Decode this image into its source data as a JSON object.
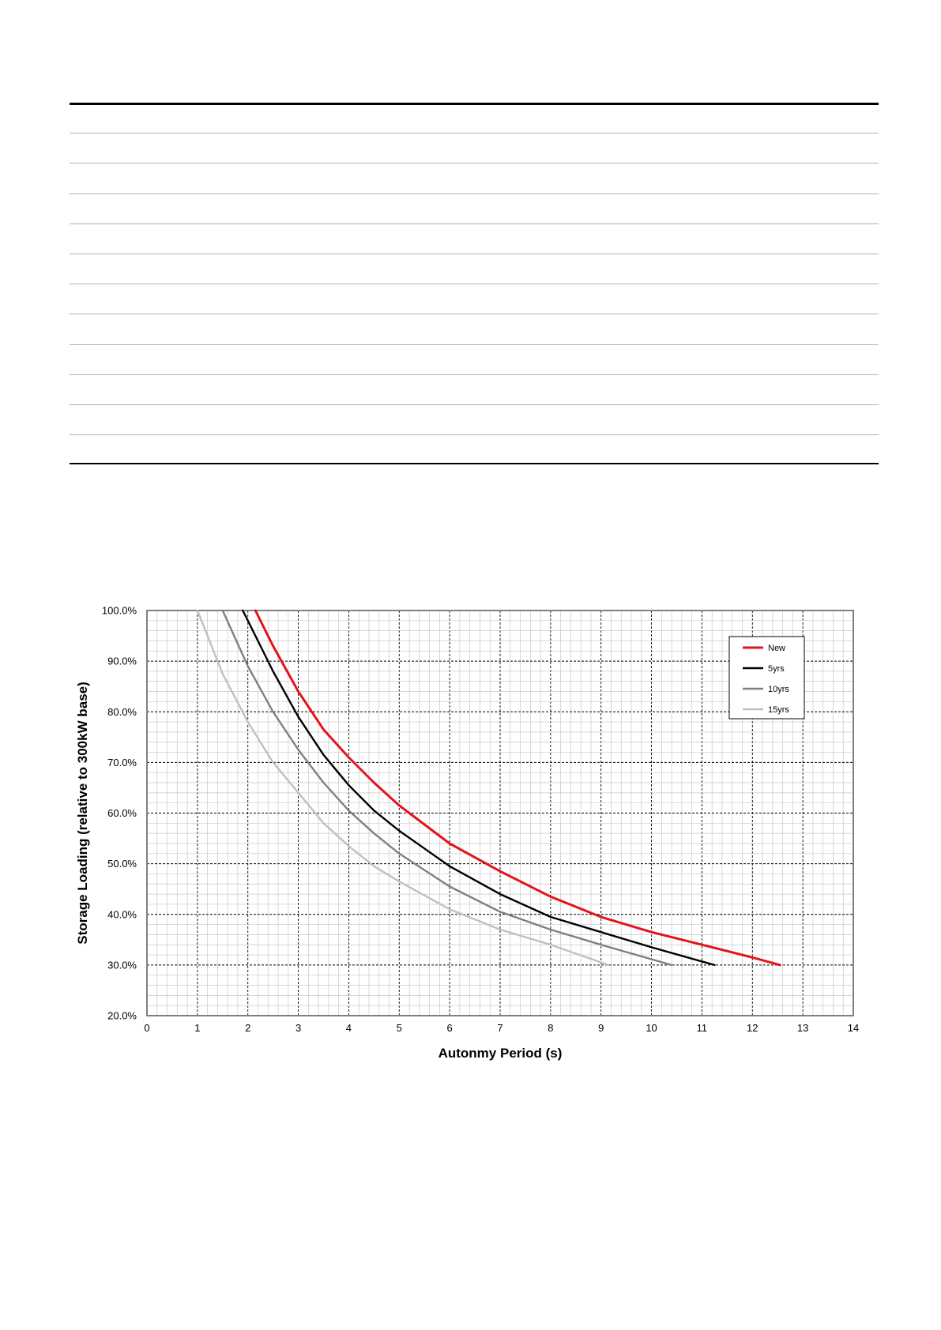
{
  "table": {
    "row_count": 12
  },
  "chart_data": {
    "type": "line",
    "title": "",
    "xlabel": "Autonmy Period (s)",
    "ylabel": "Storage Loading (relative to 300kW base)",
    "xlim": [
      0,
      14
    ],
    "ylim": [
      20,
      100
    ],
    "xticks": [
      "0",
      "1",
      "2",
      "3",
      "4",
      "5",
      "6",
      "7",
      "8",
      "9",
      "10",
      "11",
      "12",
      "13",
      "14"
    ],
    "yticks": [
      "20.0%",
      "30.0%",
      "40.0%",
      "50.0%",
      "60.0%",
      "70.0%",
      "80.0%",
      "90.0%",
      "100.0%"
    ],
    "grid": true,
    "legend_position": "top-right",
    "series": [
      {
        "name": "New",
        "color": "#e3141b",
        "x": [
          2.15,
          2.5,
          3.0,
          3.5,
          4.0,
          4.5,
          5.0,
          6.0,
          7.0,
          8.0,
          9.0,
          10.0,
          11.0,
          12.0,
          12.55
        ],
        "y": [
          100,
          93,
          84,
          76.5,
          71,
          66,
          61.5,
          54,
          48.5,
          43.5,
          39.5,
          36.5,
          34,
          31.5,
          30
        ]
      },
      {
        "name": "5yrs",
        "color": "#000000",
        "x": [
          1.9,
          2.2,
          2.5,
          3.0,
          3.5,
          4.0,
          4.5,
          5.0,
          6.0,
          7.0,
          8.0,
          9.0,
          10.0,
          11.25
        ],
        "y": [
          100,
          94,
          88,
          79,
          71.5,
          65.5,
          60.5,
          56.5,
          49.5,
          44,
          39.5,
          36.5,
          33.5,
          30
        ]
      },
      {
        "name": "10yrs",
        "color": "#808080",
        "x": [
          1.5,
          2.0,
          2.5,
          3.0,
          3.5,
          4.0,
          4.5,
          5.0,
          6.0,
          7.0,
          8.0,
          9.0,
          10.4
        ],
        "y": [
          100,
          89,
          80,
          72.5,
          66,
          60.5,
          56,
          52,
          45.5,
          40.5,
          37,
          34,
          30
        ]
      },
      {
        "name": "15yrs",
        "color": "#c0c0c0",
        "x": [
          1.0,
          1.5,
          2.0,
          2.5,
          3.0,
          3.5,
          4.0,
          4.5,
          5.0,
          6.0,
          7.0,
          8.0,
          9.15
        ],
        "y": [
          100,
          87.5,
          78,
          70,
          64,
          58,
          53.5,
          49.5,
          46.5,
          41,
          37,
          34,
          30
        ]
      }
    ]
  }
}
